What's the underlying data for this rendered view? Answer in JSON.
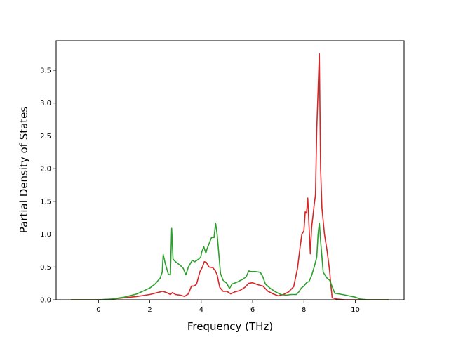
{
  "chart_data": {
    "type": "line",
    "title": "",
    "xlabel": "Frequency (THz)",
    "ylabel": "Partial Density of States",
    "xlim": [
      -1.65,
      11.9
    ],
    "ylim": [
      0.0,
      3.95
    ],
    "xticks": [
      0,
      2,
      4,
      6,
      8,
      10
    ],
    "yticks": [
      0.0,
      0.5,
      1.0,
      1.5,
      2.0,
      2.5,
      3.0,
      3.5
    ],
    "xtick_labels": [
      "0",
      "2",
      "4",
      "6",
      "8",
      "10"
    ],
    "ytick_labels": [
      "0.0",
      "0.5",
      "1.0",
      "1.5",
      "2.0",
      "2.5",
      "3.0",
      "3.5"
    ],
    "grid": false,
    "legend": null,
    "series": [
      {
        "color": "#d62728",
        "x": [
          -1.07,
          -0.5,
          0.0,
          0.5,
          1.0,
          1.5,
          2.0,
          2.3,
          2.5,
          2.65,
          2.8,
          2.88,
          3.0,
          3.2,
          3.35,
          3.5,
          3.62,
          3.72,
          3.82,
          3.95,
          4.05,
          4.12,
          4.2,
          4.3,
          4.45,
          4.55,
          4.62,
          4.72,
          4.85,
          5.0,
          5.15,
          5.3,
          5.5,
          5.7,
          5.85,
          6.0,
          6.2,
          6.4,
          6.6,
          6.8,
          7.0,
          7.2,
          7.4,
          7.6,
          7.75,
          7.85,
          7.92,
          8.0,
          8.05,
          8.1,
          8.15,
          8.2,
          8.25,
          8.3,
          8.4,
          8.45,
          8.5,
          8.55,
          8.6,
          8.65,
          8.7,
          8.8,
          8.9,
          9.0,
          9.05,
          9.1,
          9.3,
          9.6,
          10.0,
          10.5,
          11.0,
          11.3
        ],
        "y": [
          0.0,
          0.0,
          0.0,
          0.01,
          0.03,
          0.05,
          0.08,
          0.11,
          0.13,
          0.11,
          0.08,
          0.11,
          0.08,
          0.07,
          0.05,
          0.09,
          0.21,
          0.21,
          0.24,
          0.43,
          0.5,
          0.58,
          0.57,
          0.5,
          0.49,
          0.44,
          0.38,
          0.19,
          0.13,
          0.13,
          0.09,
          0.12,
          0.14,
          0.19,
          0.25,
          0.26,
          0.23,
          0.21,
          0.13,
          0.09,
          0.06,
          0.08,
          0.12,
          0.2,
          0.48,
          0.8,
          1.0,
          1.05,
          1.34,
          1.32,
          1.55,
          1.1,
          0.7,
          1.1,
          1.45,
          1.6,
          2.6,
          3.2,
          3.75,
          2.0,
          1.4,
          1.0,
          0.75,
          0.45,
          0.22,
          0.03,
          0.01,
          0.0,
          0.0,
          0.0,
          0.0,
          0.0
        ]
      },
      {
        "color": "#2ca02c",
        "x": [
          -1.07,
          -0.5,
          0.0,
          0.5,
          1.0,
          1.5,
          2.0,
          2.2,
          2.4,
          2.48,
          2.52,
          2.6,
          2.72,
          2.8,
          2.85,
          2.9,
          3.0,
          3.2,
          3.3,
          3.4,
          3.5,
          3.65,
          3.75,
          3.9,
          3.98,
          4.02,
          4.1,
          4.18,
          4.22,
          4.3,
          4.4,
          4.5,
          4.56,
          4.62,
          4.75,
          4.85,
          5.0,
          5.1,
          5.2,
          5.4,
          5.6,
          5.75,
          5.85,
          5.95,
          6.1,
          6.3,
          6.4,
          6.5,
          6.7,
          6.9,
          7.1,
          7.3,
          7.5,
          7.7,
          7.8,
          7.9,
          8.0,
          8.1,
          8.2,
          8.3,
          8.4,
          8.5,
          8.55,
          8.6,
          8.65,
          8.75,
          8.9,
          9.0,
          9.1,
          9.2,
          9.5,
          10.0,
          10.2,
          10.5,
          11.0,
          11.3
        ],
        "y": [
          0.0,
          0.0,
          0.0,
          0.01,
          0.04,
          0.09,
          0.18,
          0.24,
          0.33,
          0.42,
          0.69,
          0.55,
          0.39,
          0.38,
          1.09,
          0.62,
          0.58,
          0.52,
          0.48,
          0.38,
          0.5,
          0.6,
          0.58,
          0.62,
          0.65,
          0.73,
          0.81,
          0.71,
          0.77,
          0.85,
          0.95,
          0.95,
          1.17,
          1.0,
          0.4,
          0.3,
          0.25,
          0.17,
          0.24,
          0.27,
          0.31,
          0.35,
          0.44,
          0.43,
          0.43,
          0.42,
          0.35,
          0.24,
          0.17,
          0.12,
          0.08,
          0.07,
          0.08,
          0.08,
          0.12,
          0.18,
          0.21,
          0.26,
          0.28,
          0.37,
          0.5,
          0.65,
          1.0,
          1.17,
          0.9,
          0.42,
          0.33,
          0.3,
          0.2,
          0.1,
          0.08,
          0.04,
          0.01,
          0.0,
          0.0,
          0.0
        ]
      }
    ]
  }
}
